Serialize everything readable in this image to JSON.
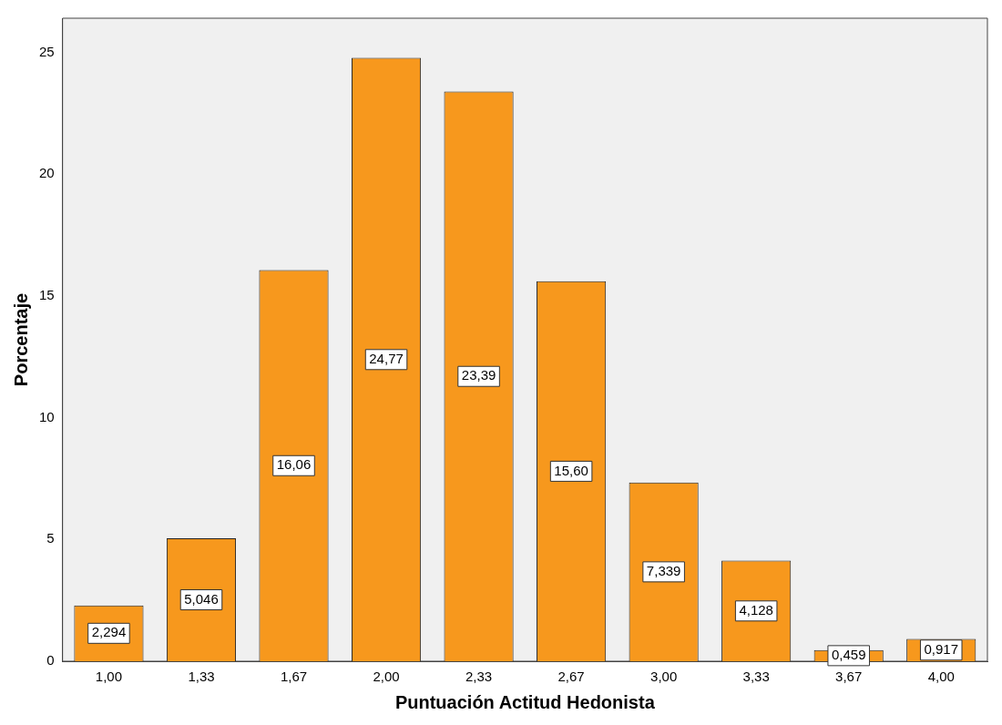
{
  "chart_data": {
    "type": "bar",
    "xlabel": "Puntuación Actitud Hedonista",
    "ylabel": "Porcentaje",
    "categories": [
      "1,00",
      "1,33",
      "1,67",
      "2,00",
      "2,33",
      "2,67",
      "3,00",
      "3,33",
      "3,67",
      "4,00"
    ],
    "values": [
      2.294,
      5.046,
      16.06,
      24.77,
      23.39,
      15.6,
      7.339,
      4.128,
      0.459,
      0.917
    ],
    "value_labels": [
      "2,294",
      "5,046",
      "16,06",
      "24,77",
      "23,39",
      "15,60",
      "7,339",
      "4,128",
      "0,459",
      "0,917"
    ],
    "color": "#f7981d",
    "ylim": [
      0,
      26.4
    ],
    "yticks": [
      0,
      5,
      10,
      15,
      20,
      25
    ],
    "grid": false,
    "legend": false
  }
}
